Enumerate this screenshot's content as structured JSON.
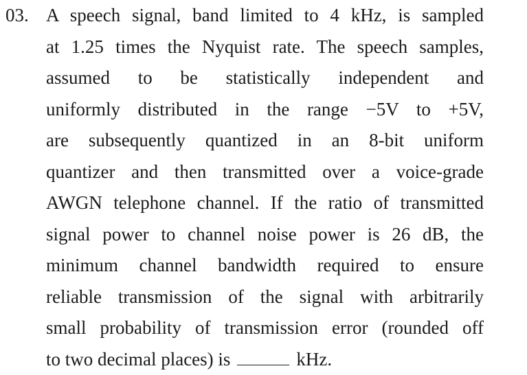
{
  "question": {
    "number": "03.",
    "lines": [
      "A speech signal, band limited to 4 kHz, is sampled",
      "at 1.25 times the Nyquist rate. The speech samples,",
      "assumed to be statistically independent and",
      "uniformly distributed in the range −5V to +5V,",
      "are subsequently quantized in an 8-bit uniform",
      "quantizer and then transmitted over a voice-grade",
      "AWGN telephone channel. If the ratio of transmitted",
      "signal power to channel noise power is 26 dB, the",
      "minimum channel bandwidth required to ensure",
      "reliable transmission of the signal with arbitrarily",
      "small probability of transmission error (rounded off"
    ],
    "final_line_prefix": "to two decimal places) is",
    "final_line_suffix": "kHz."
  }
}
